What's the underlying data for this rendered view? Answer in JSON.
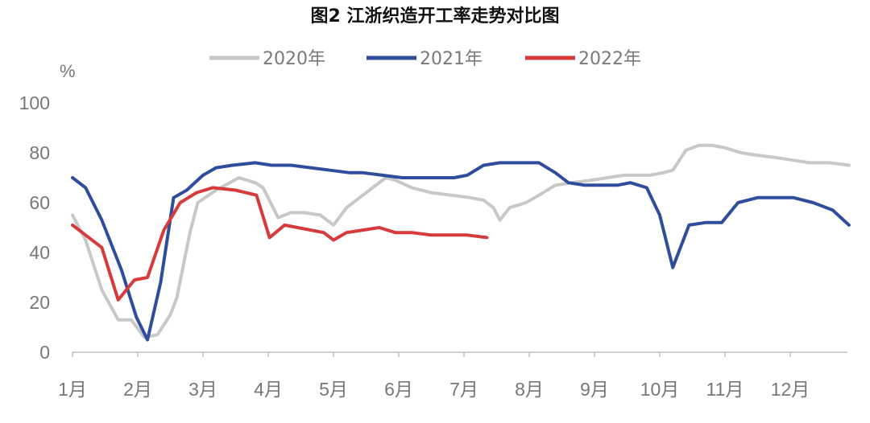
{
  "chart_data": {
    "type": "line",
    "title": "图2 江浙织造开工率走势对比图",
    "ylabel": "%",
    "xlabel": "",
    "ylim": [
      0,
      100
    ],
    "yticks": [
      0,
      20,
      40,
      60,
      80,
      100
    ],
    "xlim": [
      1,
      12.9
    ],
    "categories": [
      "1月",
      "2月",
      "3月",
      "4月",
      "5月",
      "6月",
      "7月",
      "8月",
      "9月",
      "10月",
      "11月",
      "12月"
    ],
    "legend": "top",
    "grid": false,
    "series": [
      {
        "name": "2020年",
        "color": "#c8c8c8",
        "x": [
          1.0,
          1.2,
          1.45,
          1.7,
          1.9,
          2.1,
          2.3,
          2.5,
          2.6,
          2.8,
          2.92,
          3.2,
          3.55,
          3.8,
          3.92,
          4.15,
          4.35,
          4.55,
          4.8,
          5.0,
          5.2,
          5.4,
          5.6,
          5.8,
          5.95,
          6.2,
          6.5,
          6.8,
          7.1,
          7.3,
          7.45,
          7.55,
          7.7,
          7.95,
          8.15,
          8.4,
          8.65,
          8.95,
          9.2,
          9.45,
          9.7,
          9.85,
          10.05,
          10.2,
          10.4,
          10.6,
          10.8,
          11.0,
          11.25,
          11.5,
          11.8,
          12.05,
          12.3,
          12.6,
          12.9
        ],
        "values": [
          55,
          45,
          25,
          13,
          13,
          6,
          7,
          15,
          22,
          48,
          60,
          65,
          70,
          68,
          66,
          54,
          56,
          56,
          55,
          51,
          58,
          62,
          66,
          70,
          69,
          66,
          64,
          63,
          62,
          61,
          58,
          53,
          58,
          60,
          63,
          67,
          68,
          69,
          70,
          71,
          71,
          71,
          72,
          73,
          81,
          83,
          83,
          82,
          80,
          79,
          78,
          77,
          76,
          76,
          75
        ]
      },
      {
        "name": "2021年",
        "color": "#2e4d9c",
        "x": [
          1.0,
          1.2,
          1.45,
          1.75,
          1.98,
          2.15,
          2.35,
          2.55,
          2.75,
          3.0,
          3.2,
          3.45,
          3.8,
          4.05,
          4.35,
          4.65,
          4.95,
          5.25,
          5.45,
          5.75,
          6.05,
          6.35,
          6.65,
          6.85,
          7.05,
          7.3,
          7.55,
          7.85,
          8.15,
          8.4,
          8.6,
          8.85,
          9.1,
          9.35,
          9.55,
          9.8,
          10.0,
          10.2,
          10.45,
          10.7,
          10.95,
          11.2,
          11.5,
          11.8,
          12.05,
          12.35,
          12.65,
          12.9
        ],
        "values": [
          70,
          66,
          53,
          33,
          14,
          5,
          28,
          62,
          65,
          71,
          74,
          75,
          76,
          75,
          75,
          74,
          73,
          72,
          72,
          71,
          70,
          70,
          70,
          70,
          71,
          75,
          76,
          76,
          76,
          72,
          68,
          67,
          67,
          67,
          68,
          66,
          55,
          34,
          51,
          52,
          52,
          60,
          62,
          62,
          62,
          60,
          57,
          51
        ]
      },
      {
        "name": "2022年",
        "color": "#d63a3a",
        "x": [
          1.0,
          1.2,
          1.45,
          1.7,
          1.95,
          2.15,
          2.4,
          2.65,
          2.9,
          3.15,
          3.5,
          3.82,
          4.02,
          4.25,
          4.45,
          4.65,
          4.85,
          5.0,
          5.2,
          5.45,
          5.7,
          5.95,
          6.2,
          6.5,
          6.8,
          7.05,
          7.35
        ],
        "values": [
          51,
          47,
          42,
          21,
          29,
          30,
          49,
          60,
          64,
          66,
          65,
          63,
          46,
          51,
          50,
          49,
          48,
          45,
          48,
          49,
          50,
          48,
          48,
          47,
          47,
          47,
          46
        ]
      }
    ]
  }
}
